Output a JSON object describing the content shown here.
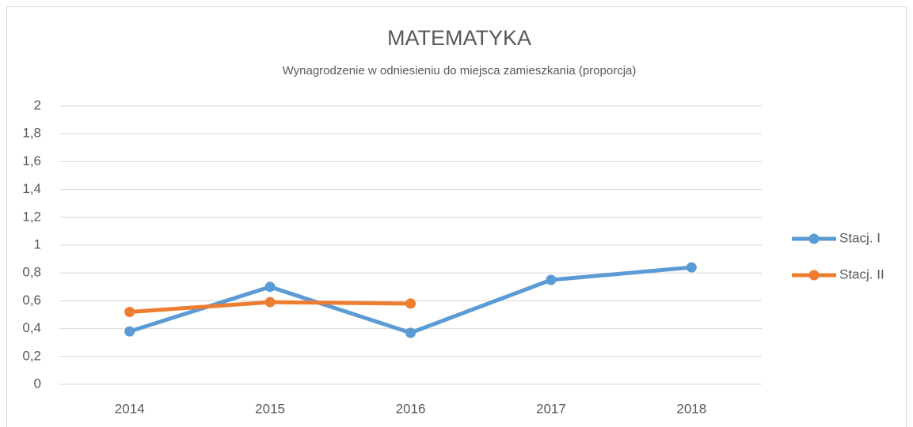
{
  "chart_data": {
    "type": "line",
    "title": "MATEMATYKA",
    "subtitle": "Wynagrodzenie w odniesieniu do miejsca zamieszkania (proporcja)",
    "categories": [
      "2014",
      "2015",
      "2016",
      "2017",
      "2018"
    ],
    "series": [
      {
        "name": "Stacj. I",
        "color": "#5b9bd5",
        "values": [
          0.38,
          0.7,
          0.37,
          0.75,
          0.84
        ]
      },
      {
        "name": "Stacj. II",
        "color": "#ed7d31",
        "values": [
          0.52,
          0.59,
          0.58,
          null,
          null
        ]
      }
    ],
    "ylim": [
      0,
      2
    ],
    "yticks": [
      0,
      {
        "value": 0.2,
        "label": "0,2"
      },
      {
        "value": 0.4,
        "label": "0,4"
      },
      {
        "value": 0.6,
        "label": "0,6"
      },
      {
        "value": 0.8,
        "label": "0,8"
      },
      1,
      {
        "value": 1.2,
        "label": "1,2"
      },
      {
        "value": 1.4,
        "label": "1,4"
      },
      {
        "value": 1.6,
        "label": "1,6"
      },
      {
        "value": 1.8,
        "label": "1,8"
      },
      2
    ],
    "grid": true,
    "legend": "right"
  }
}
